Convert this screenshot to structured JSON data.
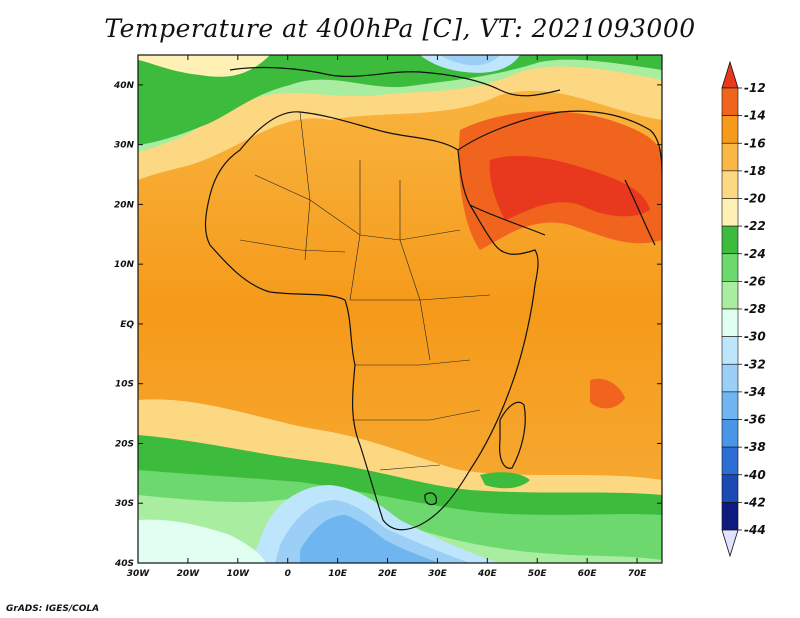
{
  "title": "Temperature at 400hPa [C], VT: 2021093000",
  "credit": "GrADS: IGES/COLA",
  "map": {
    "lat_labels": [
      "40N",
      "30N",
      "20N",
      "10N",
      "EQ",
      "10S",
      "20S",
      "30S",
      "40S"
    ],
    "lon_labels": [
      "30W",
      "20W",
      "10W",
      "0",
      "10E",
      "20E",
      "30E",
      "40E",
      "50E",
      "60E",
      "70E"
    ],
    "lat_range": [
      -40,
      45
    ],
    "lon_range": [
      -30,
      75
    ]
  },
  "colorbar": {
    "labels": [
      "-12",
      "-14",
      "-16",
      "-18",
      "-20",
      "-22",
      "-24",
      "-26",
      "-28",
      "-30",
      "-32",
      "-34",
      "-36",
      "-38",
      "-40",
      "-42",
      "-44"
    ],
    "colors": [
      "#e8381e",
      "#f0641e",
      "#f59a1a",
      "#f9b845",
      "#fdd882",
      "#fff0b5",
      "#3dbb3d",
      "#6dd86d",
      "#a8eda0",
      "#e1fff1",
      "#bde5fb",
      "#9ccff6",
      "#6fb5ef",
      "#4996e8",
      "#2c6ed6",
      "#1c4ab4",
      "#0d1a7e",
      "#e2e2ff"
    ]
  }
}
